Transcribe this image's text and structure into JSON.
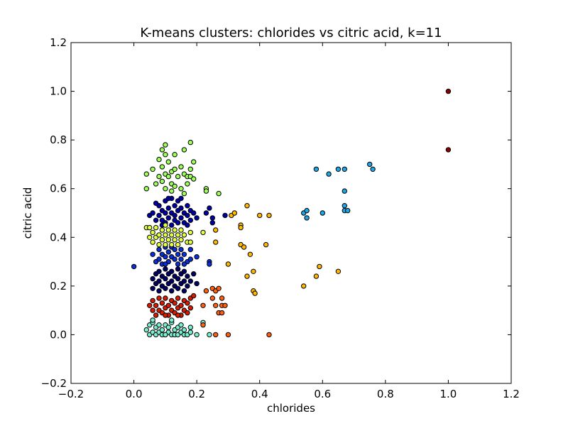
{
  "chart_data": {
    "type": "scatter",
    "title": "K-means clusters: chlorides vs citric acid, k=11",
    "xlabel": "chlorides",
    "ylabel": "citric acid",
    "xlim": [
      -0.2,
      1.2
    ],
    "ylim": [
      -0.2,
      1.2
    ],
    "x_ticks": [
      "−0.2",
      "0.0",
      "0.2",
      "0.4",
      "0.6",
      "0.8",
      "1.0",
      "1.2"
    ],
    "y_ticks": [
      "−0.2",
      "0.0",
      "0.2",
      "0.4",
      "0.6",
      "0.8",
      "1.0",
      "1.2"
    ],
    "grid": false,
    "series": [
      {
        "color": "#0000aa",
        "points": [
          [
            0.05,
            0.49
          ],
          [
            0.06,
            0.5
          ],
          [
            0.07,
            0.47
          ],
          [
            0.08,
            0.53
          ],
          [
            0.08,
            0.49
          ],
          [
            0.09,
            0.51
          ],
          [
            0.09,
            0.47
          ],
          [
            0.1,
            0.55
          ],
          [
            0.1,
            0.5
          ],
          [
            0.1,
            0.46
          ],
          [
            0.11,
            0.52
          ],
          [
            0.11,
            0.48
          ],
          [
            0.12,
            0.56
          ],
          [
            0.12,
            0.5
          ],
          [
            0.12,
            0.45
          ],
          [
            0.13,
            0.53
          ],
          [
            0.13,
            0.49
          ],
          [
            0.13,
            0.47
          ],
          [
            0.14,
            0.55
          ],
          [
            0.14,
            0.51
          ],
          [
            0.14,
            0.46
          ],
          [
            0.15,
            0.52
          ],
          [
            0.15,
            0.48
          ],
          [
            0.16,
            0.5
          ],
          [
            0.16,
            0.46
          ],
          [
            0.17,
            0.53
          ],
          [
            0.17,
            0.49
          ],
          [
            0.18,
            0.51
          ],
          [
            0.18,
            0.47
          ],
          [
            0.19,
            0.5
          ],
          [
            0.2,
            0.48
          ],
          [
            0.23,
            0.5
          ],
          [
            0.24,
            0.52
          ],
          [
            0.25,
            0.48
          ],
          [
            0.25,
            0.46
          ],
          [
            0.29,
            0.49
          ],
          [
            0.07,
            0.54
          ],
          [
            0.11,
            0.56
          ],
          [
            0.15,
            0.56
          ],
          [
            0.09,
            0.45
          ],
          [
            0.17,
            0.45
          ]
        ]
      },
      {
        "color": "#0a2ed8",
        "points": [
          [
            0.0,
            0.28
          ],
          [
            0.06,
            0.33
          ],
          [
            0.07,
            0.3
          ],
          [
            0.08,
            0.35
          ],
          [
            0.08,
            0.31
          ],
          [
            0.09,
            0.33
          ],
          [
            0.09,
            0.29
          ],
          [
            0.1,
            0.36
          ],
          [
            0.1,
            0.32
          ],
          [
            0.11,
            0.34
          ],
          [
            0.11,
            0.3
          ],
          [
            0.12,
            0.36
          ],
          [
            0.12,
            0.32
          ],
          [
            0.13,
            0.35
          ],
          [
            0.13,
            0.31
          ],
          [
            0.14,
            0.33
          ],
          [
            0.14,
            0.29
          ],
          [
            0.15,
            0.35
          ],
          [
            0.15,
            0.31
          ],
          [
            0.16,
            0.33
          ],
          [
            0.17,
            0.3
          ],
          [
            0.18,
            0.31
          ],
          [
            0.18,
            0.35
          ],
          [
            0.24,
            0.3
          ],
          [
            0.24,
            0.29
          ],
          [
            0.2,
            0.32
          ],
          [
            0.1,
            0.29
          ],
          [
            0.16,
            0.29
          ]
        ]
      },
      {
        "color": "#000066",
        "points": [
          [
            0.06,
            0.19
          ],
          [
            0.06,
            0.23
          ],
          [
            0.07,
            0.21
          ],
          [
            0.07,
            0.25
          ],
          [
            0.08,
            0.18
          ],
          [
            0.08,
            0.22
          ],
          [
            0.08,
            0.26
          ],
          [
            0.09,
            0.2
          ],
          [
            0.09,
            0.24
          ],
          [
            0.1,
            0.19
          ],
          [
            0.1,
            0.23
          ],
          [
            0.1,
            0.27
          ],
          [
            0.11,
            0.21
          ],
          [
            0.11,
            0.25
          ],
          [
            0.12,
            0.18
          ],
          [
            0.12,
            0.22
          ],
          [
            0.12,
            0.26
          ],
          [
            0.13,
            0.2
          ],
          [
            0.13,
            0.24
          ],
          [
            0.14,
            0.19
          ],
          [
            0.14,
            0.23
          ],
          [
            0.14,
            0.27
          ],
          [
            0.15,
            0.21
          ],
          [
            0.15,
            0.25
          ],
          [
            0.16,
            0.18
          ],
          [
            0.16,
            0.22
          ],
          [
            0.16,
            0.26
          ],
          [
            0.17,
            0.2
          ],
          [
            0.17,
            0.24
          ],
          [
            0.18,
            0.22
          ],
          [
            0.19,
            0.25
          ],
          [
            0.2,
            0.21
          ]
        ]
      },
      {
        "color": "#d81a00",
        "points": [
          [
            0.06,
            0.1
          ],
          [
            0.06,
            0.14
          ],
          [
            0.07,
            0.08
          ],
          [
            0.07,
            0.12
          ],
          [
            0.08,
            0.1
          ],
          [
            0.08,
            0.15
          ],
          [
            0.09,
            0.09
          ],
          [
            0.09,
            0.13
          ],
          [
            0.1,
            0.11
          ],
          [
            0.1,
            0.15
          ],
          [
            0.11,
            0.08
          ],
          [
            0.11,
            0.12
          ],
          [
            0.12,
            0.1
          ],
          [
            0.12,
            0.14
          ],
          [
            0.13,
            0.09
          ],
          [
            0.13,
            0.13
          ],
          [
            0.14,
            0.11
          ],
          [
            0.14,
            0.15
          ],
          [
            0.15,
            0.08
          ],
          [
            0.15,
            0.12
          ],
          [
            0.16,
            0.1
          ],
          [
            0.16,
            0.14
          ],
          [
            0.17,
            0.09
          ],
          [
            0.17,
            0.13
          ],
          [
            0.18,
            0.11
          ],
          [
            0.18,
            0.15
          ],
          [
            0.05,
            0.12
          ],
          [
            0.19,
            0.16
          ],
          [
            0.1,
            0.08
          ],
          [
            0.14,
            0.08
          ]
        ]
      },
      {
        "color": "#78f0d0",
        "points": [
          [
            0.04,
            0.02
          ],
          [
            0.05,
            0.0
          ],
          [
            0.05,
            0.04
          ],
          [
            0.06,
            0.01
          ],
          [
            0.06,
            0.05
          ],
          [
            0.07,
            0.0
          ],
          [
            0.07,
            0.03
          ],
          [
            0.08,
            0.01
          ],
          [
            0.08,
            0.04
          ],
          [
            0.09,
            0.0
          ],
          [
            0.09,
            0.02
          ],
          [
            0.1,
            0.0
          ],
          [
            0.1,
            0.04
          ],
          [
            0.11,
            0.01
          ],
          [
            0.11,
            0.03
          ],
          [
            0.12,
            0.0
          ],
          [
            0.12,
            0.05
          ],
          [
            0.13,
            0.02
          ],
          [
            0.13,
            0.0
          ],
          [
            0.14,
            0.03
          ],
          [
            0.14,
            0.0
          ],
          [
            0.15,
            0.01
          ],
          [
            0.15,
            0.04
          ],
          [
            0.16,
            0.0
          ],
          [
            0.16,
            0.02
          ],
          [
            0.17,
            0.0
          ],
          [
            0.18,
            0.01
          ],
          [
            0.18,
            0.03
          ],
          [
            0.2,
            0.0
          ],
          [
            0.22,
            0.05
          ],
          [
            0.24,
            0.0
          ],
          [
            0.06,
            0.06
          ],
          [
            0.12,
            0.06
          ],
          [
            0.1,
            0.0
          ]
        ]
      },
      {
        "color": "#9cff5a",
        "points": [
          [
            0.04,
            0.66
          ],
          [
            0.04,
            0.6
          ],
          [
            0.06,
            0.68
          ],
          [
            0.07,
            0.62
          ],
          [
            0.08,
            0.72
          ],
          [
            0.08,
            0.65
          ],
          [
            0.09,
            0.76
          ],
          [
            0.09,
            0.69
          ],
          [
            0.09,
            0.63
          ],
          [
            0.1,
            0.78
          ],
          [
            0.1,
            0.74
          ],
          [
            0.1,
            0.66
          ],
          [
            0.1,
            0.6
          ],
          [
            0.11,
            0.71
          ],
          [
            0.11,
            0.65
          ],
          [
            0.12,
            0.67
          ],
          [
            0.12,
            0.62
          ],
          [
            0.13,
            0.74
          ],
          [
            0.13,
            0.68
          ],
          [
            0.13,
            0.61
          ],
          [
            0.14,
            0.65
          ],
          [
            0.15,
            0.69
          ],
          [
            0.15,
            0.6
          ],
          [
            0.16,
            0.76
          ],
          [
            0.16,
            0.66
          ],
          [
            0.17,
            0.65
          ],
          [
            0.17,
            0.62
          ],
          [
            0.18,
            0.79
          ],
          [
            0.18,
            0.68
          ],
          [
            0.18,
            0.65
          ],
          [
            0.19,
            0.71
          ],
          [
            0.19,
            0.64
          ],
          [
            0.23,
            0.6
          ],
          [
            0.23,
            0.59
          ],
          [
            0.27,
            0.58
          ],
          [
            0.12,
            0.59
          ],
          [
            0.16,
            0.58
          ]
        ]
      },
      {
        "color": "#e0ff40",
        "points": [
          [
            0.04,
            0.44
          ],
          [
            0.05,
            0.4
          ],
          [
            0.05,
            0.44
          ],
          [
            0.06,
            0.38
          ],
          [
            0.06,
            0.42
          ],
          [
            0.07,
            0.4
          ],
          [
            0.07,
            0.44
          ],
          [
            0.08,
            0.37
          ],
          [
            0.08,
            0.41
          ],
          [
            0.09,
            0.39
          ],
          [
            0.09,
            0.43
          ],
          [
            0.1,
            0.37
          ],
          [
            0.1,
            0.41
          ],
          [
            0.1,
            0.45
          ],
          [
            0.11,
            0.39
          ],
          [
            0.11,
            0.43
          ],
          [
            0.12,
            0.37
          ],
          [
            0.12,
            0.41
          ],
          [
            0.13,
            0.39
          ],
          [
            0.13,
            0.43
          ],
          [
            0.14,
            0.37
          ],
          [
            0.14,
            0.41
          ],
          [
            0.15,
            0.39
          ],
          [
            0.15,
            0.43
          ],
          [
            0.16,
            0.41
          ],
          [
            0.17,
            0.38
          ],
          [
            0.18,
            0.42
          ],
          [
            0.22,
            0.42
          ],
          [
            0.18,
            0.38
          ]
        ]
      },
      {
        "color": "#ff6010",
        "points": [
          [
            0.22,
            0.12
          ],
          [
            0.22,
            0.04
          ],
          [
            0.23,
            0.18
          ],
          [
            0.25,
            0.19
          ],
          [
            0.25,
            0.15
          ],
          [
            0.26,
            0.12
          ],
          [
            0.26,
            0.18
          ],
          [
            0.27,
            0.19
          ],
          [
            0.27,
            0.09
          ],
          [
            0.28,
            0.12
          ],
          [
            0.28,
            0.15
          ],
          [
            0.28,
            0.09
          ],
          [
            0.29,
            0.12
          ],
          [
            0.3,
            0.0
          ],
          [
            0.26,
            0.0
          ],
          [
            0.43,
            0.0
          ]
        ]
      },
      {
        "color": "#ffb800",
        "points": [
          [
            0.26,
            0.43
          ],
          [
            0.26,
            0.38
          ],
          [
            0.3,
            0.29
          ],
          [
            0.31,
            0.49
          ],
          [
            0.32,
            0.5
          ],
          [
            0.34,
            0.45
          ],
          [
            0.34,
            0.44
          ],
          [
            0.34,
            0.37
          ],
          [
            0.35,
            0.36
          ],
          [
            0.36,
            0.53
          ],
          [
            0.36,
            0.24
          ],
          [
            0.37,
            0.33
          ],
          [
            0.38,
            0.26
          ],
          [
            0.38,
            0.18
          ],
          [
            0.385,
            0.17
          ],
          [
            0.4,
            0.49
          ],
          [
            0.42,
            0.37
          ],
          [
            0.43,
            0.49
          ],
          [
            0.54,
            0.2
          ],
          [
            0.58,
            0.24
          ],
          [
            0.59,
            0.28
          ],
          [
            0.65,
            0.26
          ]
        ]
      },
      {
        "color": "#1aa8e8",
        "points": [
          [
            0.54,
            0.5
          ],
          [
            0.55,
            0.51
          ],
          [
            0.55,
            0.48
          ],
          [
            0.58,
            0.68
          ],
          [
            0.6,
            0.5
          ],
          [
            0.62,
            0.66
          ],
          [
            0.65,
            0.68
          ],
          [
            0.67,
            0.68
          ],
          [
            0.67,
            0.59
          ],
          [
            0.67,
            0.53
          ],
          [
            0.67,
            0.51
          ],
          [
            0.68,
            0.51
          ],
          [
            0.75,
            0.7
          ],
          [
            0.76,
            0.68
          ]
        ]
      },
      {
        "color": "#880000",
        "points": [
          [
            1.0,
            1.0
          ],
          [
            1.0,
            0.76
          ]
        ]
      }
    ]
  }
}
